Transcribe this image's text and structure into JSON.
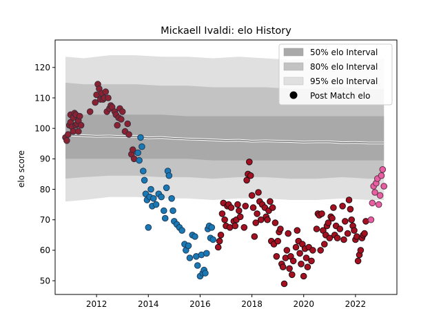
{
  "chart_data": {
    "type": "scatter",
    "title": "Mickaell Ivaldi: elo History",
    "xlabel": "",
    "ylabel": "elo score",
    "xlim": [
      2010.4,
      2023.6
    ],
    "ylim": [
      45.5,
      129
    ],
    "x_ticks": [
      2012,
      2014,
      2016,
      2018,
      2020,
      2022
    ],
    "x_tick_labels": [
      "2012",
      "2014",
      "2016",
      "2018",
      "2020",
      "2022"
    ],
    "y_ticks": [
      50,
      60,
      70,
      80,
      90,
      100,
      110,
      120
    ],
    "y_tick_labels": [
      "50",
      "60",
      "70",
      "80",
      "90",
      "100",
      "110",
      "120"
    ],
    "grid": false,
    "legend_position": "top-right",
    "legend": [
      {
        "label": "50% elo Interval",
        "kind": "patch",
        "color": "#a9a9a9"
      },
      {
        "label": "80% elo Interval",
        "kind": "patch",
        "color": "#c3c3c3"
      },
      {
        "label": "95% elo Interval",
        "kind": "patch",
        "color": "#e0e0e0"
      },
      {
        "label": "Post Match elo",
        "kind": "marker",
        "color": "#000000"
      }
    ],
    "bands": {
      "x": [
        2010.8,
        2011.5,
        2012.5,
        2013.5,
        2014.5,
        2015.5,
        2016.5,
        2017.5,
        2018.5,
        2019.5,
        2020.5,
        2021.5,
        2022.5,
        2023.1
      ],
      "p95": {
        "lower": [
          76,
          76.5,
          77.5,
          77.5,
          77,
          77,
          76.5,
          77,
          77,
          76.5,
          76.5,
          77,
          76.5,
          76.5
        ],
        "upper": [
          123.5,
          123,
          124,
          124,
          123.5,
          123.5,
          123,
          123.5,
          123,
          122.5,
          123,
          123,
          122.5,
          123
        ]
      },
      "p80": {
        "lower": [
          83.5,
          84,
          84.5,
          84.5,
          84,
          84,
          83.5,
          84,
          84,
          83.5,
          83.5,
          84,
          83.5,
          83.5
        ],
        "upper": [
          115,
          114.5,
          114.5,
          114.5,
          114,
          114,
          113.5,
          113.5,
          113.5,
          113,
          113,
          113.5,
          113,
          113
        ]
      },
      "p50": {
        "lower": [
          90,
          90,
          90,
          90,
          90,
          90,
          89.5,
          89.5,
          89.5,
          89.5,
          89.5,
          89.5,
          89.5,
          89.5
        ],
        "upper": [
          104.5,
          104.5,
          104.5,
          104.5,
          104.5,
          104,
          104,
          104,
          104,
          104,
          104,
          104,
          104,
          104
        ]
      }
    },
    "median_line": {
      "x": [
        2010.8,
        2011.0,
        2011.5,
        2012.0,
        2012.5,
        2013.0,
        2013.5,
        2014.0,
        2014.5,
        2015.0,
        2015.5,
        2016.0,
        2016.5,
        2017.0,
        2017.5,
        2018.0,
        2018.5,
        2019.0,
        2019.5,
        2020.0,
        2020.5,
        2021.0,
        2021.5,
        2022.0,
        2022.5,
        2023.1
      ],
      "y": [
        97.3,
        97.8,
        97.6,
        97.4,
        97.5,
        97.3,
        97.4,
        96.9,
        97.0,
        96.7,
        96.5,
        96.4,
        96.2,
        96.0,
        96.1,
        95.8,
        95.9,
        95.8,
        95.7,
        95.5,
        95.6,
        95.6,
        95.3,
        95.4,
        95.2,
        95.2
      ]
    },
    "series": [
      {
        "name": "",
        "color": "#8b2232",
        "edge": "#3a2a3a",
        "x": [
          2010.8,
          2010.85,
          2010.9,
          2010.95,
          2011.0,
          2011.0,
          2011.05,
          2011.1,
          2011.1,
          2011.15,
          2011.2,
          2011.2,
          2011.25,
          2011.3,
          2011.3,
          2011.35,
          2011.4,
          2011.75,
          2011.95,
          2012.0,
          2012.05,
          2012.1,
          2012.15,
          2012.2,
          2012.25,
          2012.3,
          2012.35,
          2012.4,
          2012.45,
          2012.5,
          2012.55,
          2012.6,
          2012.7,
          2012.75,
          2012.8,
          2012.85,
          2012.9,
          2012.95,
          2013.0,
          2013.1,
          2013.2,
          2013.25,
          2013.35,
          2013.4,
          2013.45
        ],
        "y": [
          97,
          96,
          98,
          101,
          104.5,
          102,
          100.5,
          103.5,
          99,
          105,
          101,
          104.5,
          101.5,
          99,
          102.5,
          104,
          101,
          105.5,
          108.5,
          111,
          114.5,
          113,
          109.5,
          111.5,
          109.5,
          110,
          112,
          105.5,
          110,
          106.5,
          107.5,
          107,
          105.5,
          104.5,
          101,
          103.5,
          106.5,
          103,
          105.5,
          99,
          101.5,
          98,
          91.5,
          93,
          90
        ]
      },
      {
        "name": "",
        "color": "#1a78b4",
        "edge": "#1d3c5a",
        "x": [
          2013.6,
          2013.65,
          2013.7,
          2013.75,
          2013.8,
          2013.85,
          2013.9,
          2013.95,
          2014.0,
          2014.05,
          2014.1,
          2014.15,
          2014.2,
          2014.3,
          2014.4,
          2014.5,
          2014.6,
          2014.65,
          2014.7,
          2014.75,
          2014.8,
          2014.9,
          2014.95,
          2015.0,
          2015.1,
          2015.2,
          2015.3,
          2015.4,
          2015.45,
          2015.55,
          2015.6,
          2015.7,
          2015.8,
          2015.85,
          2015.9,
          2016.0,
          2016.05,
          2016.1,
          2016.15,
          2016.2,
          2016.25,
          2016.3,
          2016.35,
          2016.4,
          2016.45,
          2016.5
        ],
        "y": [
          92,
          89.5,
          97,
          94,
          86,
          83,
          78.5,
          76.5,
          67.5,
          77.5,
          80,
          74.5,
          77,
          75,
          78.5,
          77.5,
          73,
          70.5,
          80.5,
          86,
          84.5,
          77,
          73,
          69.5,
          68.5,
          67.5,
          66.5,
          62,
          60,
          61.5,
          57.5,
          65,
          64.5,
          58,
          55,
          51.5,
          58.5,
          52.5,
          53.5,
          52.5,
          59,
          67,
          68,
          64,
          67.5,
          63.5
        ]
      },
      {
        "name": "",
        "color": "#a4101f",
        "edge": "#1c0e14",
        "x": [
          2016.7,
          2016.75,
          2016.8,
          2016.85,
          2016.9,
          2016.95,
          2017.0,
          2017.05,
          2017.1,
          2017.15,
          2017.2,
          2017.3,
          2017.35,
          2017.4,
          2017.45,
          2017.5,
          2017.55,
          2017.7,
          2017.75,
          2017.8,
          2017.85,
          2017.9,
          2017.95,
          2018.0,
          2018.05,
          2018.1,
          2018.15,
          2018.2,
          2018.25,
          2018.3,
          2018.35,
          2018.4,
          2018.5,
          2018.55,
          2018.6,
          2018.65,
          2018.7,
          2018.75,
          2018.8,
          2018.85,
          2018.9,
          2018.95,
          2019.0,
          2019.05,
          2019.1,
          2019.15,
          2019.2,
          2019.25,
          2019.3,
          2019.35,
          2019.4,
          2019.45,
          2019.5,
          2019.55,
          2019.6,
          2019.7,
          2019.75,
          2019.8,
          2019.85,
          2019.9,
          2019.95,
          2020.0,
          2020.05,
          2020.1,
          2020.15,
          2020.2,
          2020.3,
          2020.35,
          2020.5,
          2020.55,
          2020.6,
          2020.65,
          2020.7,
          2020.75,
          2020.8,
          2020.85,
          2020.9,
          2020.95,
          2021.0,
          2021.05,
          2021.1,
          2021.15,
          2021.2,
          2021.25,
          2021.3,
          2021.4,
          2021.5,
          2021.55,
          2021.6,
          2021.7,
          2021.75,
          2021.8,
          2021.85,
          2021.9,
          2021.95,
          2022.0,
          2022.05,
          2022.1,
          2022.15,
          2022.2,
          2022.25,
          2022.3,
          2022.35,
          2022.4
        ],
        "y": [
          61,
          63,
          65,
          72,
          75.5,
          70,
          68,
          74.5,
          75,
          67.5,
          74,
          69.5,
          68,
          70,
          75,
          73,
          71,
          67.5,
          74.5,
          83,
          85,
          89,
          84.5,
          78,
          74,
          64.5,
          69,
          72,
          79,
          76,
          70,
          75,
          74,
          71,
          70,
          73,
          76,
          63,
          74,
          62,
          69,
          58,
          63,
          66,
          67,
          55.5,
          54.5,
          49,
          57.5,
          60,
          65.5,
          54,
          58,
          52,
          56.5,
          61,
          66.5,
          63,
          59,
          55.5,
          62,
          51.5,
          60.5,
          57.5,
          54.5,
          61,
          56.5,
          60,
          67,
          72,
          71.5,
          60,
          72,
          66.5,
          62,
          65,
          68,
          69,
          64,
          71,
          70.5,
          74,
          65,
          68,
          64,
          67,
          74.5,
          63.5,
          69.5,
          65.5,
          76.5,
          73.5,
          70,
          68,
          66.5,
          63.5,
          64.5,
          56.5,
          58.5,
          60,
          64,
          65,
          65.5,
          69.5
        ]
      },
      {
        "name": "",
        "color": "#e95ea3",
        "edge": "#5e3345",
        "x": [
          2022.6,
          2022.65,
          2022.7,
          2022.75,
          2022.8,
          2022.85,
          2022.9,
          2022.95,
          2023.0,
          2023.05,
          2023.1
        ],
        "y": [
          70,
          75.5,
          81,
          79,
          82,
          83.5,
          75,
          78,
          84.5,
          86.5,
          81
        ]
      }
    ]
  }
}
